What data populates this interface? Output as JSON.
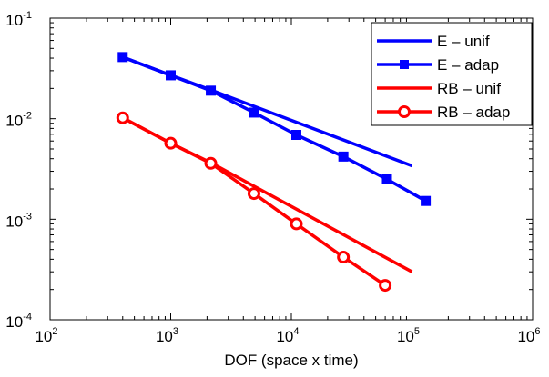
{
  "chart_data": {
    "type": "line",
    "title": "",
    "xlabel": "DOF (space x time)",
    "ylabel": "",
    "xscale": "log",
    "yscale": "log",
    "xlim": [
      100,
      1000000
    ],
    "ylim": [
      0.0001,
      0.1
    ],
    "grid": false,
    "legend_position": "top-right",
    "x_tick_labels": [
      {
        "base": "10",
        "exp": "2"
      },
      {
        "base": "10",
        "exp": "3"
      },
      {
        "base": "10",
        "exp": "4"
      },
      {
        "base": "10",
        "exp": "5"
      },
      {
        "base": "10",
        "exp": "6"
      }
    ],
    "y_tick_labels": [
      {
        "base": "10",
        "exp": "-4"
      },
      {
        "base": "10",
        "exp": "-3"
      },
      {
        "base": "10",
        "exp": "-2"
      },
      {
        "base": "10",
        "exp": "-1"
      }
    ],
    "series": [
      {
        "name": "E – unif",
        "color": "#0000ff",
        "marker": "none",
        "x": [
          400,
          1000,
          2100,
          100000
        ],
        "y": [
          0.041,
          0.027,
          0.0195,
          0.0034
        ]
      },
      {
        "name": "E – adap",
        "color": "#0000ff",
        "marker": "square",
        "x": [
          400,
          1000,
          2150,
          4900,
          11000,
          27000,
          62000,
          130000
        ],
        "y": [
          0.041,
          0.027,
          0.019,
          0.0115,
          0.0069,
          0.0042,
          0.0025,
          0.00152
        ]
      },
      {
        "name": "RB – unif",
        "color": "#ff0000",
        "marker": "none",
        "x": [
          400,
          1000,
          2100,
          100000
        ],
        "y": [
          0.0102,
          0.0057,
          0.0037,
          0.0003
        ]
      },
      {
        "name": "RB – adap",
        "color": "#ff0000",
        "marker": "circle",
        "x": [
          400,
          1000,
          2150,
          4900,
          11000,
          27000,
          60000
        ],
        "y": [
          0.0102,
          0.0057,
          0.0036,
          0.0018,
          0.0009,
          0.00042,
          0.00022
        ]
      }
    ]
  }
}
